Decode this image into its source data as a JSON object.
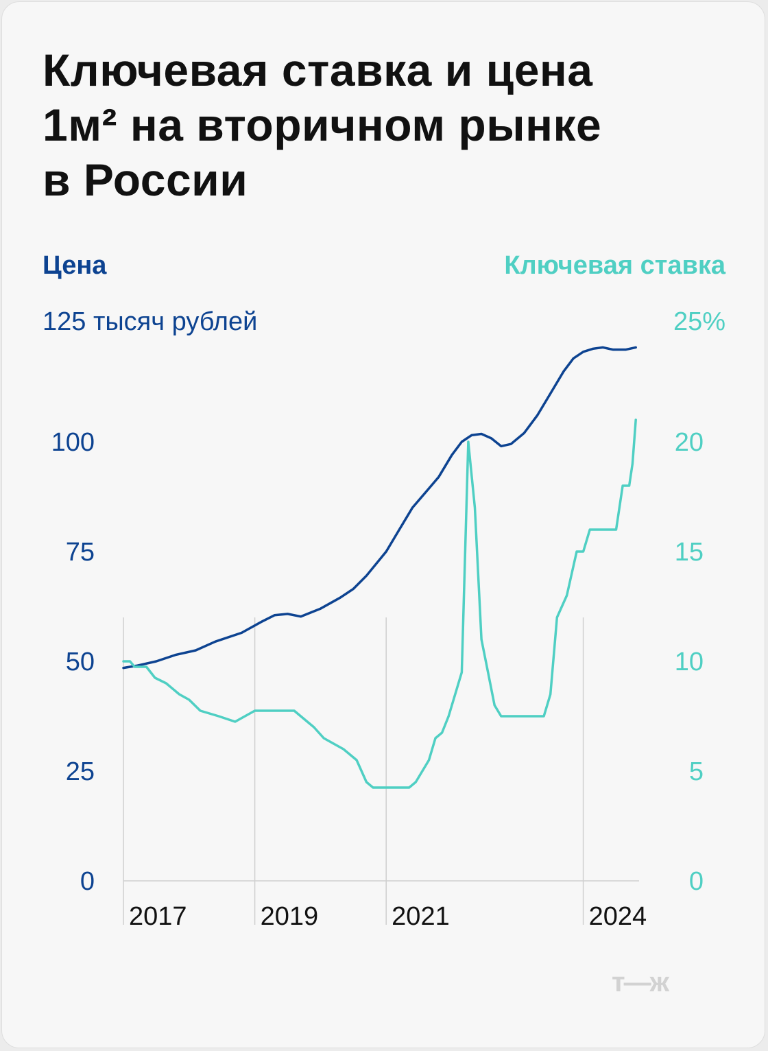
{
  "title_lines": [
    "Ключевая ставка и цена",
    "1м² на вторичном рынке",
    "в России"
  ],
  "legend": {
    "price_label": "Цена",
    "rate_label": "Ключевая ставка",
    "price_unit_top": "125 тысяч рублей",
    "rate_unit_top": "25%"
  },
  "watermark": "т—ж",
  "colors": {
    "price": "#0d4391",
    "rate": "#4fcfc3",
    "background": "#f7f7f7"
  },
  "chart_data": {
    "type": "line",
    "x_ticks": [
      {
        "label": "2017",
        "x": 2016.8
      },
      {
        "label": "2019",
        "x": 2018.8
      },
      {
        "label": "2021",
        "x": 2020.8
      },
      {
        "label": "2024",
        "x": 2023.8
      }
    ],
    "xlim": [
      2016.8,
      2024.65
    ],
    "y_left": {
      "label": "Цена",
      "unit": "тысяч рублей",
      "lim": [
        0,
        125
      ],
      "ticks": [
        "0",
        "25",
        "50",
        "75",
        "100"
      ]
    },
    "y_right": {
      "label": "Ключевая ставка",
      "unit": "%",
      "lim": [
        0,
        25
      ],
      "ticks": [
        "0",
        "5",
        "10",
        "15",
        "20"
      ]
    },
    "series": [
      {
        "name": "Цена",
        "axis": "left",
        "points": [
          [
            2016.8,
            48.5
          ],
          [
            2017.0,
            49.0
          ],
          [
            2017.3,
            50.0
          ],
          [
            2017.6,
            51.5
          ],
          [
            2017.9,
            52.5
          ],
          [
            2018.2,
            54.5
          ],
          [
            2018.6,
            56.5
          ],
          [
            2018.9,
            59.0
          ],
          [
            2019.1,
            60.5
          ],
          [
            2019.3,
            60.8
          ],
          [
            2019.5,
            60.2
          ],
          [
            2019.8,
            62.0
          ],
          [
            2020.1,
            64.5
          ],
          [
            2020.3,
            66.5
          ],
          [
            2020.5,
            69.5
          ],
          [
            2020.8,
            75.0
          ],
          [
            2021.0,
            80.0
          ],
          [
            2021.2,
            85.0
          ],
          [
            2021.4,
            88.5
          ],
          [
            2021.6,
            92.0
          ],
          [
            2021.8,
            97.0
          ],
          [
            2021.95,
            100.0
          ],
          [
            2022.1,
            101.5
          ],
          [
            2022.25,
            101.8
          ],
          [
            2022.4,
            100.8
          ],
          [
            2022.55,
            99.0
          ],
          [
            2022.7,
            99.5
          ],
          [
            2022.9,
            102.0
          ],
          [
            2023.1,
            106.0
          ],
          [
            2023.3,
            111.0
          ],
          [
            2023.5,
            116.0
          ],
          [
            2023.65,
            119.0
          ],
          [
            2023.8,
            120.5
          ],
          [
            2023.95,
            121.2
          ],
          [
            2024.1,
            121.5
          ],
          [
            2024.25,
            121.0
          ],
          [
            2024.45,
            121.0
          ],
          [
            2024.6,
            121.5
          ]
        ]
      },
      {
        "name": "Ключевая ставка",
        "axis": "right",
        "points": [
          [
            2016.8,
            10.0
          ],
          [
            2016.9,
            10.0
          ],
          [
            2016.97,
            9.75
          ],
          [
            2017.15,
            9.75
          ],
          [
            2017.28,
            9.25
          ],
          [
            2017.45,
            9.0
          ],
          [
            2017.65,
            8.5
          ],
          [
            2017.8,
            8.25
          ],
          [
            2017.97,
            7.75
          ],
          [
            2018.25,
            7.5
          ],
          [
            2018.5,
            7.25
          ],
          [
            2018.65,
            7.5
          ],
          [
            2018.8,
            7.75
          ],
          [
            2019.4,
            7.75
          ],
          [
            2019.5,
            7.5
          ],
          [
            2019.6,
            7.25
          ],
          [
            2019.7,
            7.0
          ],
          [
            2019.85,
            6.5
          ],
          [
            2020.0,
            6.25
          ],
          [
            2020.15,
            6.0
          ],
          [
            2020.35,
            5.5
          ],
          [
            2020.5,
            4.5
          ],
          [
            2020.6,
            4.25
          ],
          [
            2021.15,
            4.25
          ],
          [
            2021.25,
            4.5
          ],
          [
            2021.35,
            5.0
          ],
          [
            2021.45,
            5.5
          ],
          [
            2021.55,
            6.5
          ],
          [
            2021.65,
            6.75
          ],
          [
            2021.75,
            7.5
          ],
          [
            2021.85,
            8.5
          ],
          [
            2021.95,
            9.5
          ],
          [
            2022.05,
            20.0
          ],
          [
            2022.15,
            17.0
          ],
          [
            2022.25,
            11.0
          ],
          [
            2022.35,
            9.5
          ],
          [
            2022.45,
            8.0
          ],
          [
            2022.55,
            7.5
          ],
          [
            2022.9,
            7.5
          ],
          [
            2023.2,
            7.5
          ],
          [
            2023.3,
            8.5
          ],
          [
            2023.4,
            12.0
          ],
          [
            2023.55,
            13.0
          ],
          [
            2023.7,
            15.0
          ],
          [
            2023.8,
            15.0
          ],
          [
            2023.9,
            16.0
          ],
          [
            2024.3,
            16.0
          ],
          [
            2024.4,
            18.0
          ],
          [
            2024.5,
            18.0
          ],
          [
            2024.55,
            19.0
          ],
          [
            2024.6,
            21.0
          ]
        ]
      }
    ],
    "grid": "vertical lines at x tick positions"
  }
}
